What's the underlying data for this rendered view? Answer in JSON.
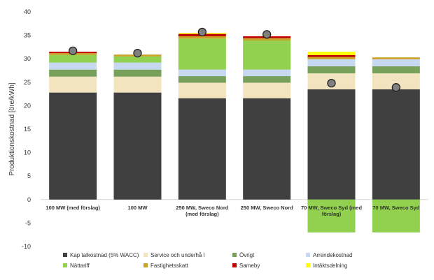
{
  "chart_data": {
    "type": "bar",
    "stacked": true,
    "ylabel": "Produktionskostnad [öre/kWh]",
    "ylim": [
      -10,
      40
    ],
    "yticks": [
      -10,
      -5,
      0,
      5,
      10,
      15,
      20,
      25,
      30,
      35,
      40
    ],
    "grid": false,
    "legend_position": "bottom",
    "categories": [
      [
        "100 MW (med förslag)"
      ],
      [
        "100 MW"
      ],
      [
        "250 MW, Sweco Nord",
        "(med förslag)"
      ],
      [
        "250 MW, Sweco Nord"
      ],
      [
        "70 MW, Sweco Syd (med",
        "förslag)"
      ],
      [
        "70 MW, Sweco Syd"
      ]
    ],
    "series": [
      {
        "name": "Kap talkostnad (5% WACC)",
        "color": "#404040",
        "values": [
          22.8,
          22.8,
          21.6,
          21.6,
          23.5,
          23.5
        ]
      },
      {
        "name": "Service och underhå l",
        "color": "#f2e4bf",
        "values": [
          3.4,
          3.4,
          3.3,
          3.3,
          3.4,
          3.4
        ]
      },
      {
        "name": "Övrigt",
        "color": "#77a05a",
        "values": [
          1.5,
          1.5,
          1.4,
          1.4,
          1.5,
          1.5
        ]
      },
      {
        "name": "Arrendekostnad",
        "color": "#c6d9f1",
        "values": [
          1.5,
          1.5,
          1.4,
          1.4,
          1.5,
          1.5
        ]
      },
      {
        "name": "Nättariff",
        "color": "#92d050",
        "values": [
          1.6,
          1.3,
          6.6,
          6.2,
          -7.0,
          -7.0
        ]
      },
      {
        "name": "Fastighetsskatt",
        "color": "#c9a227",
        "values": [
          0.4,
          0.4,
          0.5,
          0.5,
          0.5,
          0.4
        ]
      },
      {
        "name": "Sameby",
        "color": "#c00000",
        "values": [
          0.3,
          0.0,
          0.5,
          0.4,
          0.4,
          0.0
        ]
      },
      {
        "name": "Intäktsdelning",
        "color": "#ffff00",
        "values": [
          0.0,
          0.0,
          0.2,
          0.0,
          0.7,
          0.0
        ]
      }
    ],
    "markers": {
      "color": "#808080",
      "values": [
        31.7,
        31.2,
        35.7,
        35.2,
        24.8,
        23.9
      ]
    }
  }
}
